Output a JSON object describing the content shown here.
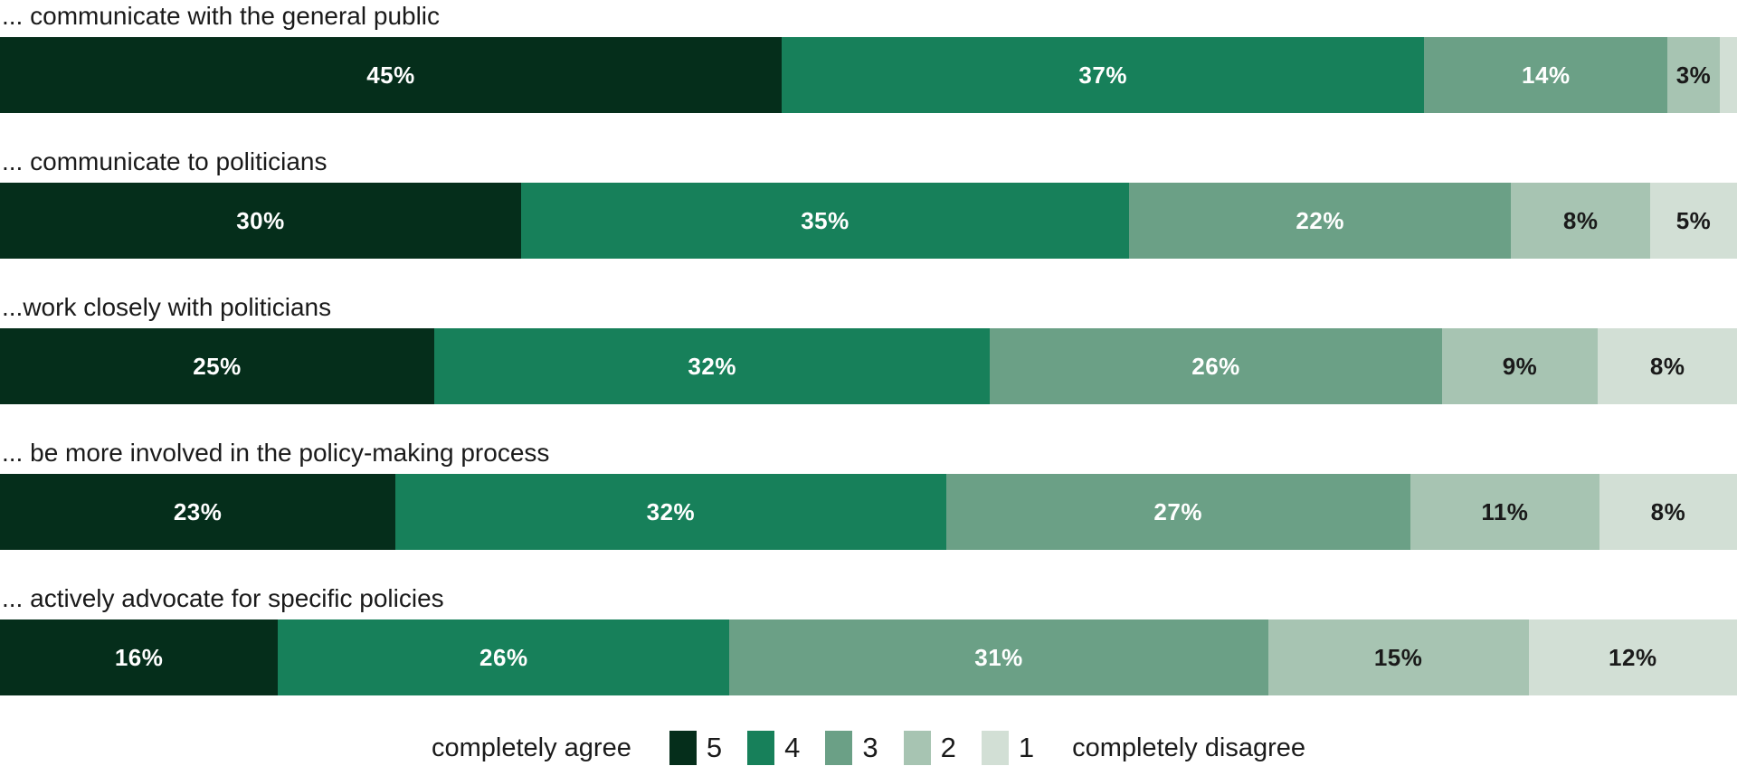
{
  "chart_data": {
    "type": "bar",
    "variant": "stacked-horizontal",
    "value_unit": "%",
    "xlim": [
      0,
      100
    ],
    "grid": false,
    "legend_position": "bottom-center",
    "levels": [
      {
        "name": "5",
        "color": "#052e1b",
        "label_color": "#ffffff"
      },
      {
        "name": "4",
        "color": "#17805a",
        "label_color": "#ffffff"
      },
      {
        "name": "3",
        "color": "#6ba086",
        "label_color": "#ffffff"
      },
      {
        "name": "2",
        "color": "#a7c4b2",
        "label_color": "#1a1a1a"
      },
      {
        "name": "1",
        "color": "#d2dfd5",
        "label_color": "#1a1a1a"
      }
    ],
    "rows": [
      {
        "label": "... communicate with the general public",
        "values": [
          45,
          37,
          14,
          3,
          1
        ],
        "value_labels": [
          "45%",
          "37%",
          "14%",
          "3%",
          ""
        ]
      },
      {
        "label": "... communicate to politicians",
        "values": [
          30,
          35,
          22,
          8,
          5
        ],
        "value_labels": [
          "30%",
          "35%",
          "22%",
          "8%",
          "5%"
        ]
      },
      {
        "label": "...work closely with politicians",
        "values": [
          25,
          32,
          26,
          9,
          8
        ],
        "value_labels": [
          "25%",
          "32%",
          "26%",
          "9%",
          "8%"
        ]
      },
      {
        "label": "... be more involved in the policy-making process",
        "values": [
          23,
          32,
          27,
          11,
          8
        ],
        "value_labels": [
          "23%",
          "32%",
          "27%",
          "11%",
          "8%"
        ]
      },
      {
        "label": "... actively advocate for specific policies",
        "values": [
          16,
          26,
          31,
          15,
          12
        ],
        "value_labels": [
          "16%",
          "26%",
          "31%",
          "15%",
          "12%"
        ]
      }
    ],
    "legend": {
      "left_label": "completely agree",
      "right_label": "completely disagree"
    }
  }
}
